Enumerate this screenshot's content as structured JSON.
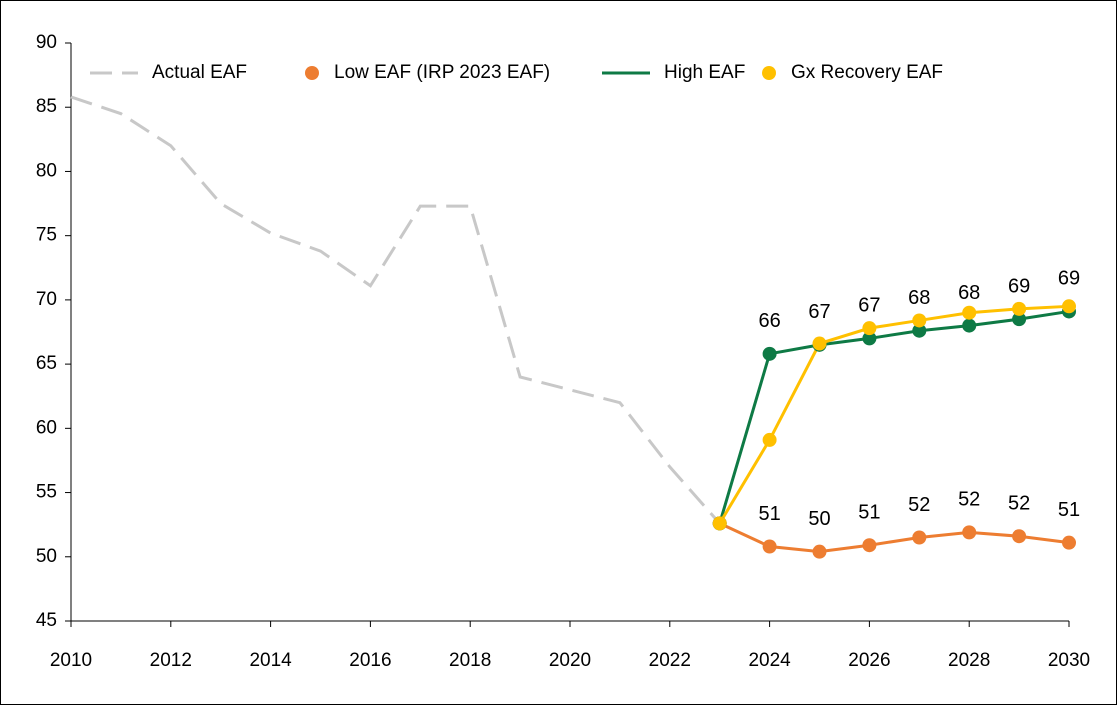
{
  "chart_data": {
    "type": "line",
    "x": [
      2010,
      2011,
      2012,
      2013,
      2014,
      2015,
      2016,
      2017,
      2018,
      2019,
      2020,
      2021,
      2022,
      2023,
      2024,
      2025,
      2026,
      2027,
      2028,
      2029,
      2030
    ],
    "xlim": [
      2010,
      2030
    ],
    "xticks": [
      2010,
      2012,
      2014,
      2016,
      2018,
      2020,
      2022,
      2024,
      2026,
      2028,
      2030
    ],
    "ylim": [
      45,
      90
    ],
    "yticks": [
      45,
      50,
      55,
      60,
      65,
      70,
      75,
      80,
      85,
      90
    ],
    "grid": false,
    "legend": "top",
    "series": [
      {
        "name": "Actual EAF",
        "color": "#c8c8c8",
        "dash": true,
        "markers": false,
        "values": [
          85.8,
          84.5,
          82,
          77.5,
          75.2,
          73.8,
          71.1,
          77.3,
          77.3,
          64,
          63,
          62,
          57,
          52.6,
          null,
          null,
          null,
          null,
          null,
          null,
          null
        ]
      },
      {
        "name": "Low EAF (IRP 2023 EAF)",
        "color": "#ed7d31",
        "dash": false,
        "markers": true,
        "values": [
          null,
          null,
          null,
          null,
          null,
          null,
          null,
          null,
          null,
          null,
          null,
          null,
          null,
          52.6,
          50.8,
          50.4,
          50.9,
          51.5,
          51.9,
          51.6,
          51.1
        ],
        "value_labels": [
          null,
          null,
          null,
          null,
          null,
          null,
          null,
          null,
          null,
          null,
          null,
          null,
          null,
          null,
          "51",
          "50",
          "51",
          "52",
          "52",
          "52",
          "51"
        ]
      },
      {
        "name": "High EAF",
        "color": "#0e7a45",
        "dash": false,
        "markers": true,
        "values": [
          null,
          null,
          null,
          null,
          null,
          null,
          null,
          null,
          null,
          null,
          null,
          null,
          null,
          52.6,
          65.8,
          66.5,
          67,
          67.6,
          68,
          68.5,
          69.1
        ],
        "value_labels": [
          null,
          null,
          null,
          null,
          null,
          null,
          null,
          null,
          null,
          null,
          null,
          null,
          null,
          null,
          "66",
          "67",
          "67",
          "68",
          "68",
          "69",
          "69"
        ]
      },
      {
        "name": "Gx Recovery EAF",
        "color": "#ffc000",
        "dash": false,
        "markers": true,
        "values": [
          null,
          null,
          null,
          null,
          null,
          null,
          null,
          null,
          null,
          null,
          null,
          null,
          null,
          52.6,
          59.1,
          66.6,
          67.8,
          68.4,
          69,
          69.3,
          69.5
        ]
      }
    ]
  }
}
